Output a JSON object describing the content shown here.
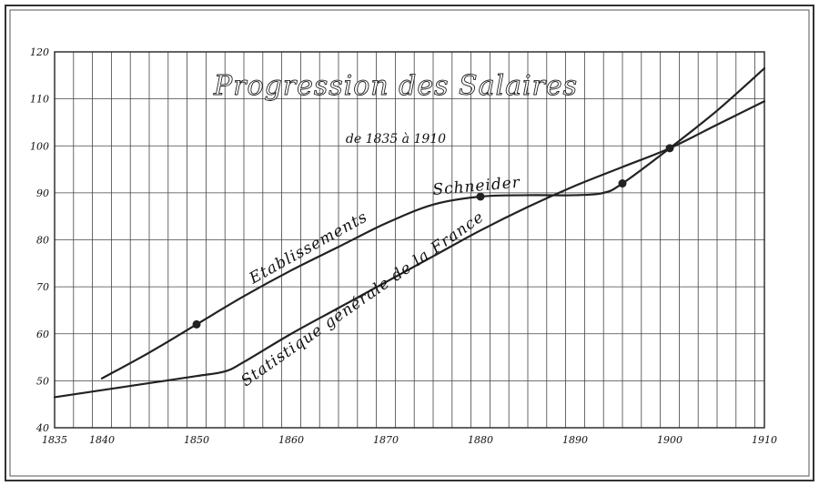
{
  "chart_data": {
    "type": "line",
    "title": "Progression des Salaires",
    "subtitle": "de 1835 à 1910",
    "xlabel": "",
    "ylabel": "",
    "xlim": [
      1835,
      1910
    ],
    "ylim": [
      40,
      120
    ],
    "x_ticks": [
      1835,
      1840,
      1850,
      1860,
      1870,
      1880,
      1890,
      1900,
      1910
    ],
    "y_ticks": [
      40,
      50,
      60,
      70,
      80,
      90,
      100,
      110,
      120
    ],
    "grid": true,
    "legend": "none",
    "series": [
      {
        "name": "Etablissements Schneider",
        "x": [
          1840,
          1845,
          1850,
          1855,
          1860,
          1865,
          1870,
          1875,
          1880,
          1885,
          1890,
          1893,
          1895,
          1900,
          1905,
          1910
        ],
        "y": [
          50.5,
          56,
          62,
          68,
          73.5,
          78.5,
          83.5,
          87.5,
          89.2,
          89.5,
          89.5,
          90,
          92,
          99.5,
          107.5,
          116.5
        ],
        "markers": [
          {
            "x": 1850,
            "y": 62
          },
          {
            "x": 1880,
            "y": 89.2
          },
          {
            "x": 1895,
            "y": 92
          },
          {
            "x": 1900,
            "y": 99.5
          }
        ]
      },
      {
        "name": "Statistique générale de la France",
        "x": [
          1835,
          1840,
          1845,
          1850,
          1853,
          1855,
          1860,
          1865,
          1870,
          1875,
          1880,
          1885,
          1890,
          1895,
          1900,
          1905,
          1910
        ],
        "y": [
          46.5,
          48,
          49.5,
          51,
          52,
          54,
          60,
          65.5,
          71,
          76.5,
          82,
          87,
          91.5,
          95.5,
          99.5,
          104.5,
          109.5
        ]
      }
    ],
    "labels": {
      "series1_line1": "Etablissements",
      "series1_line2": "Schneider",
      "series2": "Statistique générale de la France"
    }
  }
}
